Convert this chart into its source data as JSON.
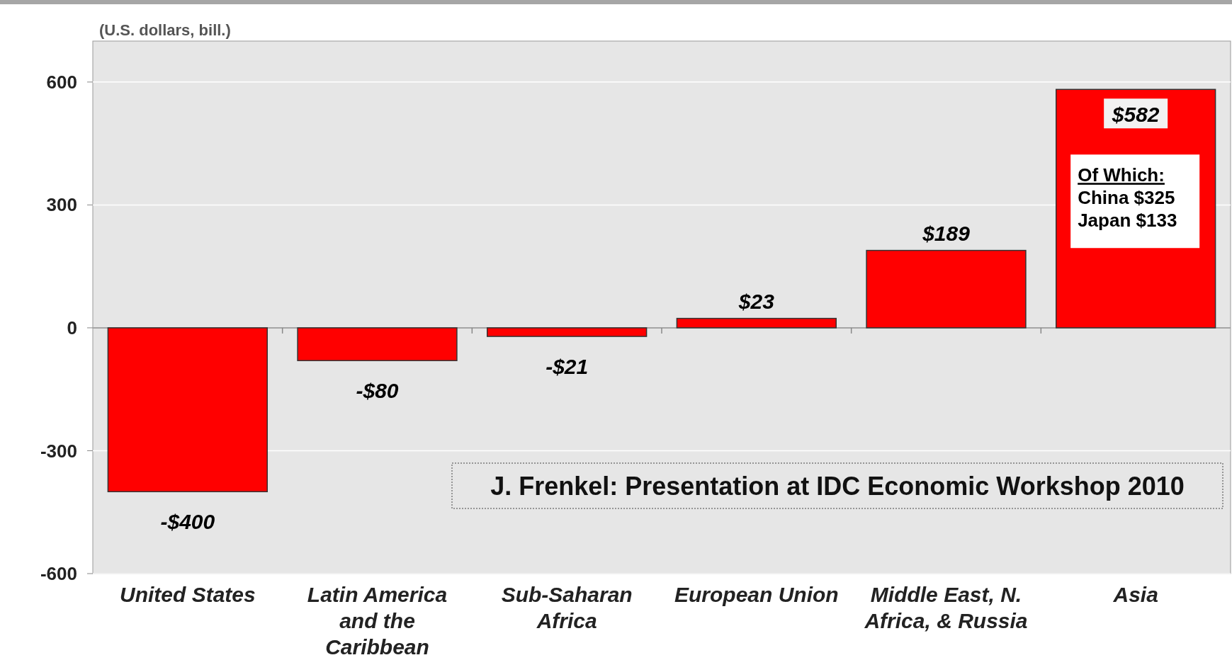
{
  "chart_data": {
    "type": "bar",
    "ylabel": "(U.S. dollars, bill.)",
    "categories": [
      "United States",
      "Latin America and the Caribbean",
      "Sub-Saharan Africa",
      "European  Union",
      "Middle East, N. Africa, & Russia",
      "Asia"
    ],
    "values": [
      -400,
      -80,
      -21,
      23,
      189,
      582
    ],
    "value_labels": [
      "-$400",
      "-$80",
      "-$21",
      "$23",
      "$189",
      "$582"
    ],
    "color": "#ff0000",
    "ylim": [
      -600,
      700
    ],
    "yticks": [
      -600,
      -300,
      0,
      300,
      600
    ],
    "grid": "y",
    "annotations": [
      "Of Which:\nChina $325\nJapan $133",
      "J. Frenkel: Presentation at IDC Economic Workshop 2010"
    ]
  }
}
